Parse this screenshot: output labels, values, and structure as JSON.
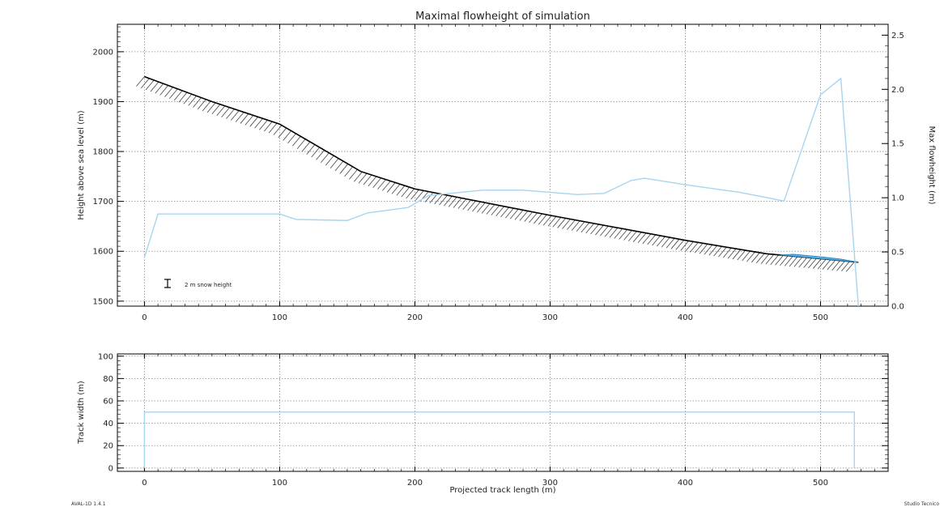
{
  "chart_data": [
    {
      "type": "line",
      "title": "Maximal flowheight of simulation",
      "xlabel": "",
      "ylabel": "Height above sea level (m)",
      "y2label": "Max flowheight (m)",
      "xlim": [
        -20,
        550
      ],
      "ylim": [
        1490,
        2055
      ],
      "y2lim": [
        0.0,
        2.6
      ],
      "x_ticks": [
        "0",
        "100",
        "200",
        "300",
        "400",
        "500"
      ],
      "y_ticks": [
        "1500",
        "1600",
        "1700",
        "1800",
        "1900",
        "2000"
      ],
      "y2_ticks": [
        "0.0",
        "0.5",
        "1.0",
        "1.5",
        "2.0",
        "2.5"
      ],
      "grid": true,
      "annotation": "2 m snow height",
      "colors": {
        "terrain": "#000000",
        "hatch": "#444444",
        "flowheight": "#a8d4ee",
        "deposit": "#5bb4e8",
        "grid": "#888888"
      },
      "series": [
        {
          "axis": "left",
          "x": [
            0,
            50,
            100,
            160,
            200,
            300,
            400,
            460,
            500,
            528
          ],
          "values": [
            1950,
            1900,
            1855,
            1760,
            1725,
            1672,
            1622,
            1595,
            1585,
            1578
          ]
        },
        {
          "axis": "right",
          "x": [
            0,
            10,
            100,
            112,
            150,
            165,
            195,
            210,
            250,
            280,
            310,
            320,
            340,
            360,
            370,
            400,
            440,
            473,
            500,
            515,
            528
          ],
          "values": [
            0.45,
            0.85,
            0.85,
            0.8,
            0.79,
            0.86,
            0.91,
            1.02,
            1.07,
            1.07,
            1.04,
            1.03,
            1.04,
            1.16,
            1.18,
            1.12,
            1.05,
            0.97,
            1.95,
            2.1,
            0.0
          ]
        }
      ]
    },
    {
      "type": "line",
      "title": "",
      "xlabel": "Projected track length (m)",
      "ylabel": "Track width (m)",
      "xlim": [
        -20,
        550
      ],
      "ylim": [
        -3,
        102
      ],
      "x_ticks": [
        "0",
        "100",
        "200",
        "300",
        "400",
        "500"
      ],
      "y_ticks": [
        "0",
        "20",
        "40",
        "60",
        "80",
        "100"
      ],
      "grid": true,
      "series": [
        {
          "x": [
            0,
            0,
            525,
            525
          ],
          "values": [
            0,
            50,
            50,
            0
          ]
        }
      ]
    }
  ],
  "footer": {
    "left": "AVAL-1D 1.4.1",
    "right": "Studio Tecnico"
  }
}
